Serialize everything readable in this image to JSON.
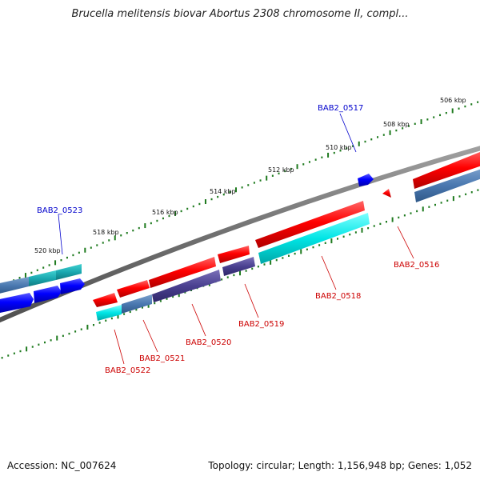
{
  "title": "Brucella melitensis biovar Abortus 2308 chromosome II, compl...",
  "footer": {
    "accession": "Accession: NC_007624",
    "summary": "Topology: circular; Length: 1,156,948 bp; Genes: 1,052"
  },
  "colors": {
    "backbone": "#808080",
    "forward_label": "#0000cc",
    "reverse_label": "#cc0000",
    "tick": "#1e7a1e"
  },
  "ruler": {
    "labels": [
      "520 kbp",
      "518 kbp",
      "516 kbp",
      "514 kbp",
      "512 kbp",
      "510 kbp",
      "508 kbp",
      "506 kbp"
    ]
  },
  "genes": {
    "BAB2_0517": "BAB2_0517",
    "BAB2_0523": "BAB2_0523",
    "BAB2_0516": "BAB2_0516",
    "BAB2_0518": "BAB2_0518",
    "BAB2_0519": "BAB2_0519",
    "BAB2_0520": "BAB2_0520",
    "BAB2_0521": "BAB2_0521",
    "BAB2_0522": "BAB2_0522"
  }
}
